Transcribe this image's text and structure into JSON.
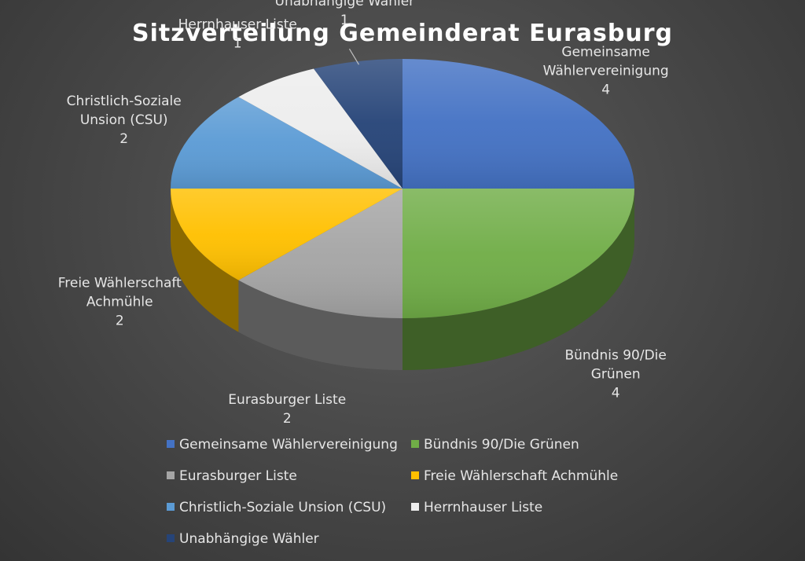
{
  "chart_data": {
    "type": "pie",
    "title": "Sitzverteilung Gemeinderat Eurasburg",
    "slices": [
      {
        "label": "Gemeinsame Wählervereinigung",
        "label_lines": [
          "Gemeinsame",
          "Wählervereinigung"
        ],
        "value": 4,
        "color": "#4472c4"
      },
      {
        "label": "Bündnis 90/Die Grünen",
        "label_lines": [
          "Bündnis 90/Die",
          "Grünen"
        ],
        "value": 4,
        "color": "#70ad47"
      },
      {
        "label": "Eurasburger Liste",
        "label_lines": [
          "Eurasburger Liste"
        ],
        "value": 2,
        "color": "#a5a5a5"
      },
      {
        "label": "Freie Wählerschaft Achmühle",
        "label_lines": [
          "Freie Wählerschaft",
          "Achmühle"
        ],
        "value": 2,
        "color": "#ffc000"
      },
      {
        "label": "Christlich-Soziale Unsion (CSU)",
        "label_lines": [
          "Christlich-Soziale",
          "Unsion (CSU)"
        ],
        "value": 2,
        "color": "#5b9bd5"
      },
      {
        "label": "Herrnhauser Liste",
        "label_lines": [
          "Herrnhauser Liste"
        ],
        "value": 1,
        "color": "#ededed"
      },
      {
        "label": "Unabhängige Wähler",
        "label_lines": [
          "Unabhängige Wähler"
        ],
        "value": 1,
        "color": "#264478"
      }
    ],
    "legend_position": "bottom",
    "style": "3d"
  }
}
